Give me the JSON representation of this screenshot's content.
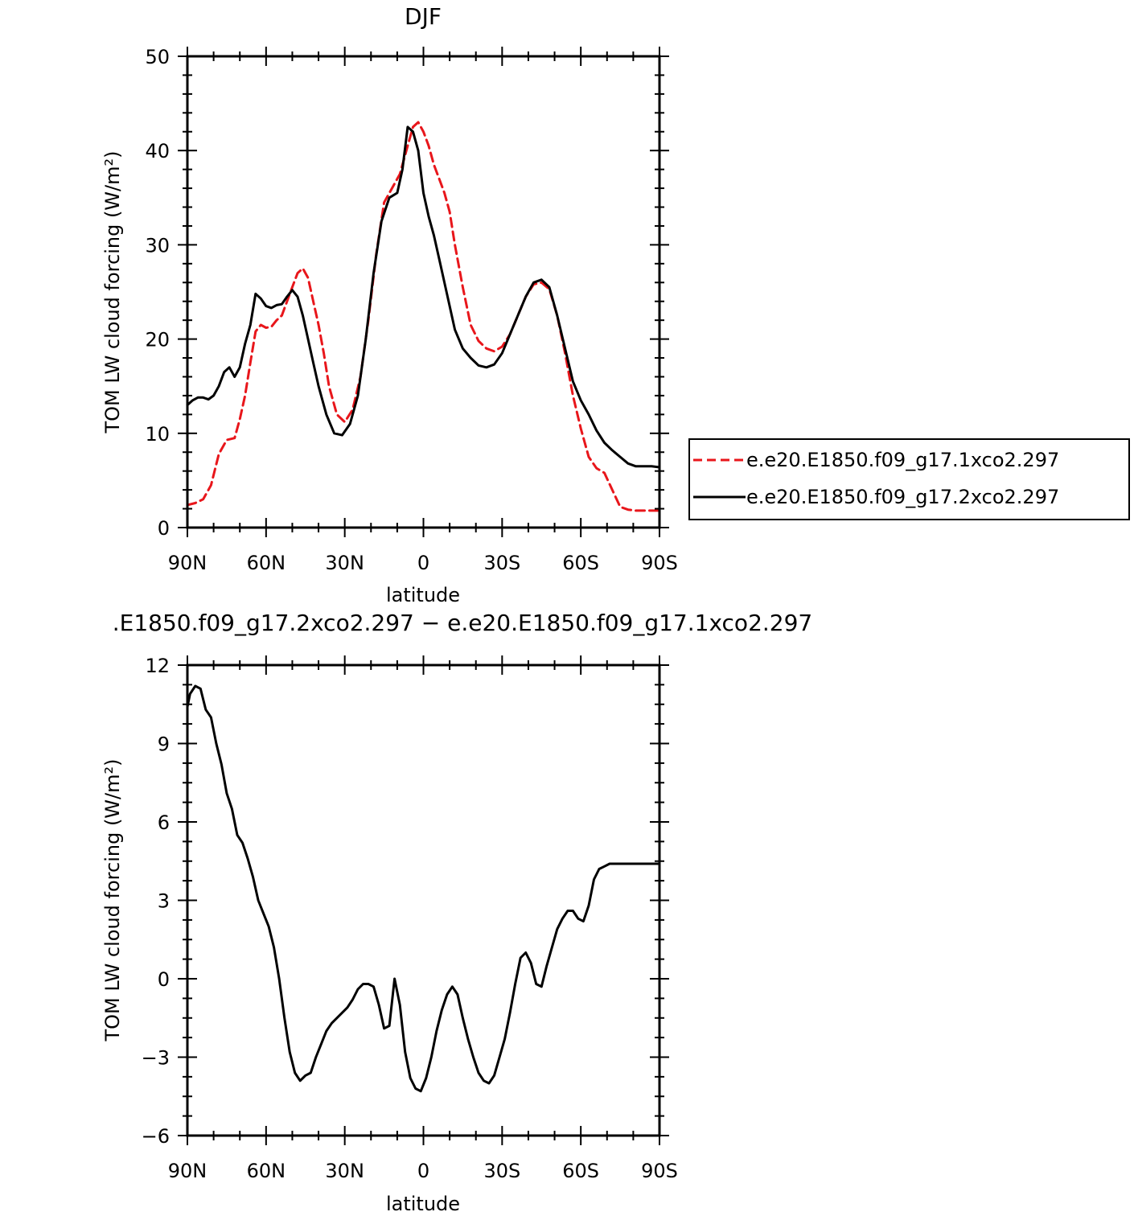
{
  "chart_data": [
    {
      "type": "line",
      "title": "DJF",
      "xlabel": "latitude",
      "ylabel": "TOM LW cloud forcing (W/m²)",
      "xlim": [
        90,
        -90
      ],
      "ylim": [
        0,
        50
      ],
      "xticks": [
        90,
        60,
        30,
        0,
        -30,
        -60,
        -90
      ],
      "xtick_labels": [
        "90N",
        "60N",
        "30N",
        "0",
        "30S",
        "60S",
        "90S"
      ],
      "yticks": [
        0,
        10,
        20,
        30,
        40,
        50
      ],
      "ytick_labels": [
        "0",
        "10",
        "20",
        "30",
        "40",
        "50"
      ],
      "legend_position": "right",
      "series": [
        {
          "name": "e.e20.E1850.f09_g17.1xco2.297",
          "color": "#e8161b",
          "dash": "dashed",
          "x": [
            90,
            87,
            84,
            81,
            78,
            75,
            72,
            70,
            68,
            66,
            64,
            62,
            60,
            58,
            56,
            54,
            52,
            50,
            48,
            46,
            44,
            42,
            40,
            38,
            36,
            33,
            30,
            27,
            24,
            21,
            18,
            15,
            12,
            9,
            6,
            4,
            2,
            0,
            -2,
            -4,
            -6,
            -8,
            -10,
            -12,
            -15,
            -18,
            -21,
            -24,
            -27,
            -30,
            -33,
            -36,
            -39,
            -42,
            -45,
            -48,
            -51,
            -54,
            -57,
            -60,
            -63,
            -66,
            -69,
            -72,
            -75,
            -78,
            -81,
            -84,
            -87,
            -90
          ],
          "values": [
            2.4,
            2.6,
            3.0,
            4.5,
            7.8,
            9.3,
            9.5,
            11.5,
            14.0,
            17.5,
            20.8,
            21.5,
            21.2,
            21.3,
            22.0,
            22.5,
            24.0,
            25.5,
            27.0,
            27.5,
            26.5,
            24.0,
            21.5,
            18.5,
            15.0,
            12.0,
            11.2,
            12.5,
            16.0,
            22.0,
            29.0,
            34.5,
            36.0,
            37.5,
            40.5,
            42.5,
            43.0,
            42.0,
            40.5,
            38.5,
            37.0,
            35.5,
            33.5,
            30.0,
            25.5,
            21.5,
            19.8,
            19.0,
            18.7,
            19.2,
            20.5,
            22.5,
            24.5,
            25.8,
            26.0,
            25.3,
            22.5,
            18.5,
            14.0,
            10.5,
            7.5,
            6.3,
            5.8,
            4.0,
            2.2,
            1.9,
            1.8,
            1.8,
            1.8,
            1.8
          ]
        },
        {
          "name": "e.e20.E1850.f09_g17.2xco2.297",
          "color": "#000000",
          "dash": "solid",
          "x": [
            90,
            88,
            86,
            84,
            82,
            80,
            78,
            76,
            74,
            72,
            70,
            68,
            66,
            64,
            62,
            60,
            58,
            56,
            54,
            52,
            50,
            48,
            46,
            44,
            42,
            40,
            37,
            34,
            31,
            28,
            25,
            22,
            19,
            16,
            13,
            10,
            8,
            6,
            4,
            2,
            0,
            -2,
            -4,
            -6,
            -8,
            -10,
            -12,
            -15,
            -18,
            -21,
            -24,
            -27,
            -30,
            -33,
            -36,
            -39,
            -42,
            -45,
            -48,
            -51,
            -54,
            -57,
            -60,
            -63,
            -66,
            -69,
            -72,
            -75,
            -78,
            -81,
            -84,
            -87,
            -90
          ],
          "values": [
            13.0,
            13.5,
            13.8,
            13.8,
            13.6,
            14.0,
            15.0,
            16.5,
            17.0,
            16.0,
            17.0,
            19.5,
            21.5,
            24.8,
            24.3,
            23.5,
            23.3,
            23.6,
            23.7,
            24.5,
            25.2,
            24.5,
            22.5,
            20.0,
            17.5,
            15.0,
            12.0,
            10.0,
            9.8,
            11.0,
            14.0,
            20.0,
            27.0,
            32.5,
            35.0,
            35.5,
            38.0,
            42.5,
            42.0,
            40.0,
            35.5,
            33.0,
            31.0,
            28.5,
            26.0,
            23.5,
            21.0,
            19.0,
            18.0,
            17.2,
            17.0,
            17.3,
            18.5,
            20.5,
            22.5,
            24.5,
            26.0,
            26.3,
            25.5,
            22.5,
            19.0,
            15.5,
            13.5,
            12.0,
            10.3,
            9.0,
            8.2,
            7.5,
            6.8,
            6.5,
            6.5,
            6.5,
            6.4
          ]
        }
      ]
    },
    {
      "type": "line",
      "title": ".E1850.f09_g17.2xco2.297 − e.e20.E1850.f09_g17.1xco2.297",
      "xlabel": "latitude",
      "ylabel": "TOM LW cloud forcing (W/m²)",
      "xlim": [
        90,
        -90
      ],
      "ylim": [
        -6,
        12
      ],
      "xticks": [
        90,
        60,
        30,
        0,
        -30,
        -60,
        -90
      ],
      "xtick_labels": [
        "90N",
        "60N",
        "30N",
        "0",
        "30S",
        "60S",
        "90S"
      ],
      "yticks": [
        -6,
        -3,
        0,
        3,
        6,
        9,
        12
      ],
      "ytick_labels": [
        "−6",
        "−3",
        "0",
        "3",
        "6",
        "9",
        "12"
      ],
      "series": [
        {
          "color": "#000000",
          "dash": "solid",
          "x": [
            90,
            89,
            87,
            85,
            83,
            81,
            79,
            77,
            75,
            73,
            71,
            69,
            67,
            65,
            63,
            61,
            59,
            57,
            55,
            53,
            51,
            49,
            47,
            45,
            43,
            41,
            39,
            37,
            35,
            33,
            31,
            29,
            27,
            25,
            23,
            21,
            19,
            17,
            15,
            13,
            11,
            9,
            7,
            5,
            3,
            1,
            -1,
            -3,
            -5,
            -7,
            -9,
            -11,
            -13,
            -15,
            -17,
            -19,
            -21,
            -23,
            -25,
            -27,
            -29,
            -31,
            -33,
            -35,
            -37,
            -39,
            -41,
            -43,
            -45,
            -47,
            -49,
            -51,
            -53,
            -55,
            -57,
            -59,
            -61,
            -63,
            -65,
            -67,
            -69,
            -71,
            -73,
            -75,
            -77,
            -79,
            -81,
            -83,
            -85,
            -87,
            -89,
            -90
          ],
          "values": [
            10.4,
            10.9,
            11.2,
            11.1,
            10.3,
            10.0,
            9.0,
            8.2,
            7.1,
            6.5,
            5.5,
            5.2,
            4.6,
            3.9,
            3.0,
            2.5,
            2.0,
            1.2,
            0.0,
            -1.5,
            -2.8,
            -3.6,
            -3.9,
            -3.7,
            -3.6,
            -3.0,
            -2.5,
            -2.0,
            -1.7,
            -1.5,
            -1.3,
            -1.1,
            -0.8,
            -0.4,
            -0.2,
            -0.2,
            -0.3,
            -1.0,
            -1.9,
            -1.8,
            0.0,
            -1.0,
            -2.8,
            -3.8,
            -4.2,
            -4.3,
            -3.8,
            -3.0,
            -2.0,
            -1.2,
            -0.6,
            -0.3,
            -0.6,
            -1.5,
            -2.3,
            -3.0,
            -3.6,
            -3.9,
            -4.0,
            -3.7,
            -3.0,
            -2.3,
            -1.3,
            -0.2,
            0.8,
            1.0,
            0.6,
            -0.2,
            -0.3,
            0.5,
            1.2,
            1.9,
            2.3,
            2.6,
            2.6,
            2.3,
            2.2,
            2.8,
            3.8,
            4.2,
            4.3,
            4.4,
            4.4,
            4.4,
            4.4,
            4.4,
            4.4,
            4.4,
            4.4,
            4.4,
            4.4,
            4.4
          ]
        }
      ]
    }
  ]
}
